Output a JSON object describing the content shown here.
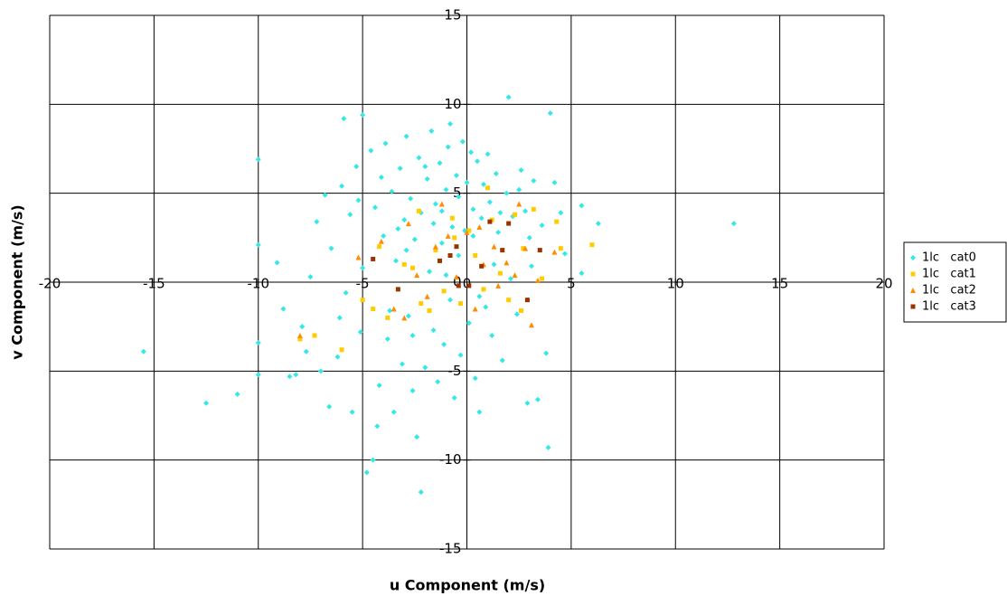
{
  "chart_data": {
    "type": "scatter",
    "x_label": "u Component (m/s)",
    "y_label": "v Component (m/s)",
    "xlim": [
      -20,
      20
    ],
    "ylim": [
      -15,
      15
    ],
    "xticks": [
      -20,
      -15,
      -10,
      -5,
      0,
      5,
      10,
      15,
      20
    ],
    "yticks": [
      -15,
      -10,
      -5,
      0,
      5,
      10,
      15
    ],
    "grid": true,
    "legend": "right",
    "series": [
      {
        "name": "1lc   cat0",
        "color": "#33e8e8",
        "marker": "diamond",
        "x": [
          -15.5,
          -12.5,
          -11,
          -10,
          -10,
          -10,
          -10,
          -9.1,
          -8.8,
          -8.2,
          -7.9,
          -7.5,
          -7.2,
          -7.0,
          -6.8,
          -6.6,
          -6.5,
          -6.2,
          -6.0,
          -5.9,
          -5.8,
          -5.6,
          -5.5,
          -5.3,
          -5.1,
          -5.0,
          -5.0,
          -4.8,
          -4.6,
          -4.5,
          -4.4,
          -4.2,
          -4.0,
          -3.9,
          -3.8,
          -3.6,
          -3.5,
          -3.4,
          -3.2,
          -3.1,
          -3.0,
          -2.9,
          -2.8,
          -2.7,
          -2.6,
          -2.5,
          -2.4,
          -2.3,
          -2.2,
          -2.2,
          -2.0,
          -1.9,
          -1.8,
          -1.7,
          -1.6,
          -1.5,
          -1.4,
          -1.3,
          -1.2,
          -1.1,
          -1.0,
          -0.9,
          -0.8,
          -0.8,
          -0.7,
          -0.6,
          -0.5,
          -0.4,
          -0.3,
          -0.2,
          -0.1,
          0.0,
          0.1,
          0.2,
          0.3,
          0.4,
          0.5,
          0.6,
          0.7,
          0.8,
          0.9,
          1.0,
          1.1,
          1.2,
          1.4,
          1.5,
          1.7,
          1.9,
          2.0,
          2.2,
          2.4,
          2.6,
          2.8,
          2.9,
          3.0,
          3.2,
          3.4,
          3.6,
          3.8,
          3.9,
          4.0,
          4.2,
          4.5,
          4.7,
          5.5,
          5.5,
          6.3,
          12.8,
          -3.3,
          -4.1,
          -2.9,
          -1.6,
          -0.4,
          1.3,
          2.1,
          -6.1,
          -7.7,
          -3.7,
          -1.0,
          0.6,
          -5.2,
          -4.3,
          -2.0,
          1.6,
          3.1,
          -8.5,
          -2.6,
          -1.2,
          0.3,
          2.5
        ],
        "y": [
          -3.9,
          -6.8,
          -6.3,
          6.9,
          2.1,
          -3.4,
          -5.2,
          1.1,
          -1.5,
          -5.2,
          -2.5,
          0.3,
          3.4,
          -5.0,
          4.9,
          -7.0,
          1.9,
          -4.2,
          5.4,
          9.2,
          -0.6,
          3.8,
          -7.3,
          6.5,
          -2.8,
          9.4,
          0.8,
          -10.7,
          7.4,
          -10.0,
          4.2,
          -5.8,
          2.6,
          7.8,
          -3.2,
          5.1,
          -7.3,
          1.2,
          6.4,
          -4.6,
          3.5,
          8.2,
          -1.9,
          4.7,
          -6.1,
          2.4,
          -8.7,
          7.0,
          -11.8,
          3.9,
          -4.8,
          5.8,
          0.6,
          8.5,
          -2.7,
          4.4,
          -5.6,
          6.7,
          2.2,
          -3.5,
          5.2,
          7.6,
          8.9,
          -1.0,
          3.1,
          -6.5,
          6.0,
          4.8,
          -4.1,
          7.9,
          2.9,
          5.6,
          -2.3,
          7.3,
          4.1,
          -5.4,
          6.8,
          -7.3,
          3.6,
          5.5,
          -1.4,
          7.2,
          4.5,
          -3.0,
          6.1,
          2.8,
          -4.4,
          5.0,
          10.4,
          3.7,
          -1.8,
          6.3,
          4.0,
          -6.8,
          2.5,
          5.7,
          -6.6,
          3.2,
          -4.0,
          -9.3,
          9.5,
          5.6,
          3.9,
          1.6,
          0.5,
          4.3,
          3.3,
          3.3,
          3.0,
          5.9,
          1.8,
          3.3,
          1.5,
          1.0,
          0.2,
          -2.0,
          -3.9,
          -1.6,
          0.4,
          -0.8,
          4.6,
          -8.1,
          6.5,
          3.9,
          0.9,
          -5.3,
          -3.0,
          4.0,
          2.6,
          5.2
        ]
      },
      {
        "name": "1lc   cat1",
        "color": "#ffcc00",
        "marker": "square",
        "x": [
          -8.0,
          -7.3,
          -6.0,
          -5.0,
          -4.5,
          -4.2,
          -3.8,
          -3.0,
          -2.6,
          -2.2,
          -1.8,
          -1.5,
          -1.1,
          -0.6,
          -0.3,
          0.1,
          0.4,
          0.8,
          1.2,
          1.6,
          2.0,
          2.3,
          2.7,
          2.6,
          3.2,
          3.6,
          4.3,
          4.5,
          6.0,
          -2.3,
          1.0,
          -0.7
        ],
        "y": [
          -3.2,
          -3.0,
          -3.8,
          -1.0,
          -1.5,
          2.0,
          -2.0,
          1.0,
          0.8,
          -1.2,
          -1.6,
          1.8,
          -0.5,
          2.5,
          -1.2,
          2.9,
          1.5,
          -0.4,
          3.5,
          0.5,
          -1.0,
          3.8,
          1.9,
          -1.6,
          4.1,
          0.2,
          3.4,
          1.9,
          2.1,
          4.0,
          5.3,
          3.6
        ]
      },
      {
        "name": "1lc   cat2",
        "color": "#ff8c00",
        "marker": "triangle",
        "x": [
          -8.0,
          -5.2,
          -4.1,
          -3.5,
          -3.0,
          -2.4,
          -1.9,
          -1.5,
          -1.2,
          -0.5,
          0.0,
          0.4,
          0.8,
          1.3,
          1.5,
          1.9,
          2.3,
          2.8,
          3.1,
          3.4,
          4.2,
          -0.9,
          -2.8,
          0.6,
          2.5
        ],
        "y": [
          -3.0,
          1.4,
          2.3,
          -1.5,
          -2.0,
          0.4,
          -0.8,
          2.0,
          4.4,
          0.3,
          2.8,
          -1.5,
          1.0,
          2.0,
          -0.2,
          1.1,
          0.4,
          1.9,
          -2.4,
          0.1,
          1.7,
          2.6,
          3.3,
          3.1,
          4.4
        ]
      },
      {
        "name": "1lc   cat3",
        "color": "#993300",
        "marker": "square",
        "x": [
          -4.5,
          -3.3,
          -1.3,
          -0.8,
          -0.5,
          0.1,
          0.7,
          1.1,
          1.7,
          2.0,
          2.9,
          3.5,
          -0.4
        ],
        "y": [
          1.3,
          -0.4,
          1.2,
          1.5,
          2.0,
          -0.2,
          0.9,
          3.4,
          1.8,
          3.3,
          -1.0,
          1.8,
          -0.2
        ]
      }
    ]
  }
}
